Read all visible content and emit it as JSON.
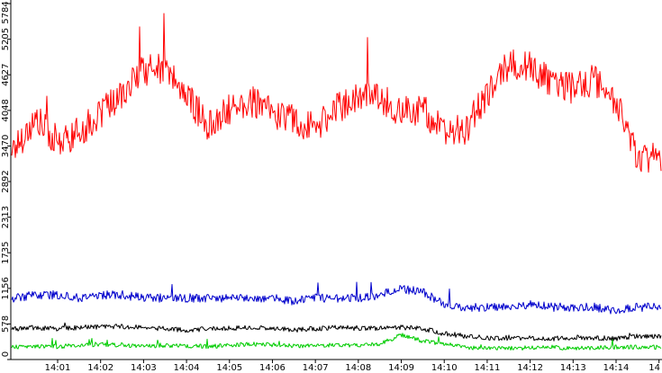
{
  "chart_data": {
    "type": "line",
    "title": "",
    "xlabel": "",
    "ylabel": "",
    "x_range_minutes": [
      14.0,
      14.99
    ],
    "x_ticks": [
      {
        "value": 1,
        "label": "14:01"
      },
      {
        "value": 2,
        "label": "14:02"
      },
      {
        "value": 3,
        "label": "14:03"
      },
      {
        "value": 4,
        "label": "14:04"
      },
      {
        "value": 5,
        "label": "14:05"
      },
      {
        "value": 6,
        "label": "14:06"
      },
      {
        "value": 7,
        "label": "14:07"
      },
      {
        "value": 8,
        "label": "14:08"
      },
      {
        "value": 9,
        "label": "14:09"
      },
      {
        "value": 10,
        "label": "14:10"
      },
      {
        "value": 11,
        "label": "14:11"
      },
      {
        "value": 12,
        "label": "14:12"
      },
      {
        "value": 13,
        "label": "14:13"
      },
      {
        "value": 14,
        "label": "14:14"
      },
      {
        "value": 15,
        "label": "14"
      }
    ],
    "ylim": [
      0,
      5784
    ],
    "y_ticks": [
      {
        "value": 0,
        "label": "0"
      },
      {
        "value": 578,
        "label": "578"
      },
      {
        "value": 1156,
        "label": "1156"
      },
      {
        "value": 1735,
        "label": "1735"
      },
      {
        "value": 2313,
        "label": "2313"
      },
      {
        "value": 2892,
        "label": "2892"
      },
      {
        "value": 3470,
        "label": "3470"
      },
      {
        "value": 4048,
        "label": "4048"
      },
      {
        "value": 4627,
        "label": "4627"
      },
      {
        "value": 5205,
        "label": "5205"
      },
      {
        "value": 5784,
        "label": "5784"
      }
    ],
    "grid": false,
    "legend": "none",
    "x": [
      "14:00",
      "14:00:30",
      "14:01",
      "14:01:30",
      "14:02",
      "14:02:30",
      "14:03",
      "14:03:30",
      "14:04",
      "14:04:30",
      "14:05",
      "14:05:30",
      "14:06",
      "14:06:30",
      "14:07",
      "14:07:30",
      "14:08",
      "14:08:30",
      "14:09",
      "14:09:30",
      "14:10",
      "14:10:30",
      "14:11",
      "14:11:30",
      "14:12",
      "14:12:30",
      "14:13",
      "14:13:30",
      "14:14",
      "14:14:30"
    ],
    "series": [
      {
        "color": "#ff0000",
        "values": [
          3450,
          3900,
          3500,
          3700,
          3950,
          4350,
          4700,
          4750,
          4300,
          3800,
          4050,
          4200,
          4000,
          3900,
          3750,
          4100,
          4250,
          4250,
          4000,
          4100,
          3650,
          3750,
          4300,
          4800,
          4750,
          4500,
          4400,
          4550,
          4200,
          3300
        ]
      },
      {
        "color": "#0000cc",
        "values": [
          1000,
          1050,
          1050,
          1000,
          1050,
          1050,
          1000,
          1000,
          1000,
          1000,
          1000,
          1000,
          1000,
          950,
          1000,
          1000,
          1000,
          1050,
          1150,
          1100,
          900,
          850,
          850,
          850,
          900,
          850,
          850,
          850,
          800,
          850
        ]
      },
      {
        "color": "#000000",
        "values": [
          500,
          520,
          500,
          520,
          530,
          540,
          520,
          500,
          480,
          500,
          510,
          520,
          500,
          480,
          500,
          520,
          500,
          510,
          520,
          500,
          420,
          380,
          350,
          330,
          350,
          340,
          360,
          350,
          340,
          380
        ]
      },
      {
        "color": "#00cc00",
        "values": [
          200,
          220,
          210,
          230,
          250,
          230,
          220,
          230,
          220,
          210,
          230,
          250,
          240,
          220,
          230,
          240,
          230,
          250,
          400,
          300,
          250,
          200,
          180,
          180,
          190,
          200,
          180,
          190,
          200,
          200
        ]
      }
    ]
  }
}
